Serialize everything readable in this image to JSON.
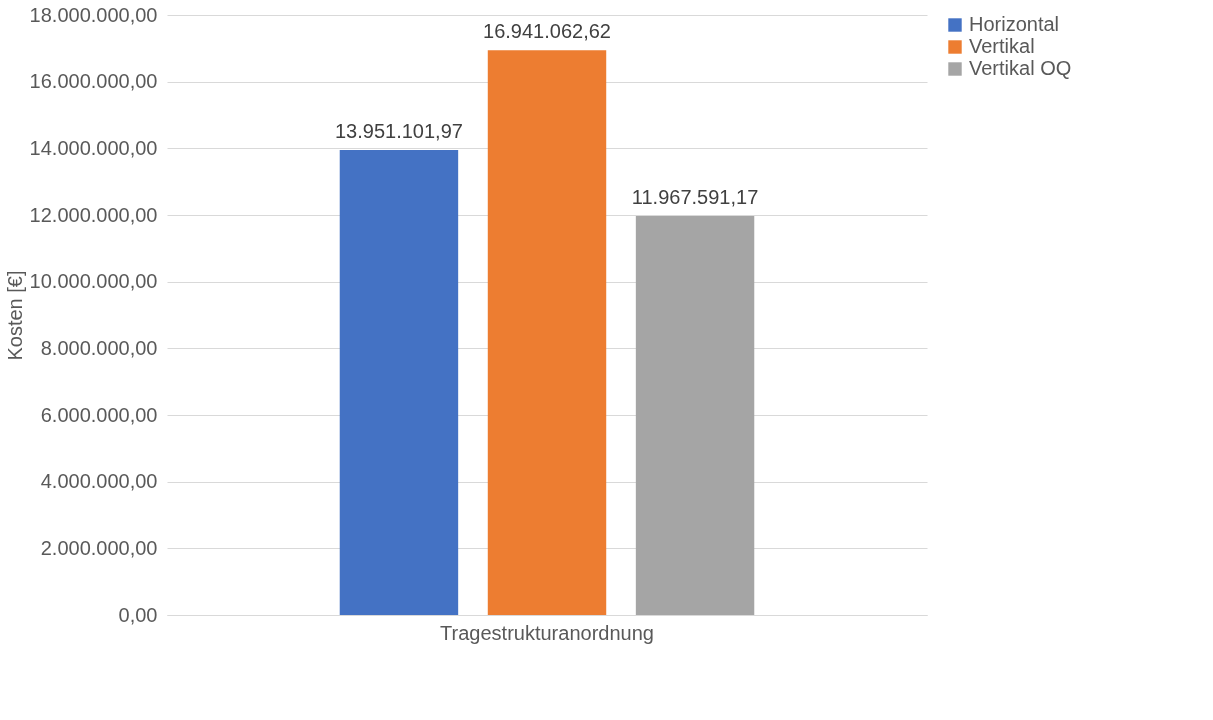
{
  "chart_data": {
    "type": "bar",
    "ylabel": "Kosten [€]",
    "categories": [
      "Tragestrukturanordnung"
    ],
    "series": [
      {
        "name": "Horizontal",
        "color": "#4472c4",
        "values": [
          13951101.97
        ],
        "value_labels": [
          "13.951.101,97"
        ]
      },
      {
        "name": "Vertikal",
        "color": "#ed7d31",
        "values": [
          16941062.62
        ],
        "value_labels": [
          "16.941.062,62"
        ]
      },
      {
        "name": "Vertikal OQ",
        "color": "#a5a5a5",
        "values": [
          11967591.17
        ],
        "value_labels": [
          "11.967.591,17"
        ]
      }
    ],
    "ylim": [
      0,
      18000000
    ],
    "yticks": [
      {
        "value": 0,
        "label": "0,00"
      },
      {
        "value": 2000000,
        "label": "2.000.000,00"
      },
      {
        "value": 4000000,
        "label": "4.000.000,00"
      },
      {
        "value": 6000000,
        "label": "6.000.000,00"
      },
      {
        "value": 8000000,
        "label": "8.000.000,00"
      },
      {
        "value": 10000000,
        "label": "10.000.000,00"
      },
      {
        "value": 12000000,
        "label": "12.000.000,00"
      },
      {
        "value": 14000000,
        "label": "14.000.000,00"
      },
      {
        "value": 16000000,
        "label": "16.000.000,00"
      },
      {
        "value": 18000000,
        "label": "18.000.000,00"
      }
    ],
    "grid": "y",
    "legend": "right"
  }
}
